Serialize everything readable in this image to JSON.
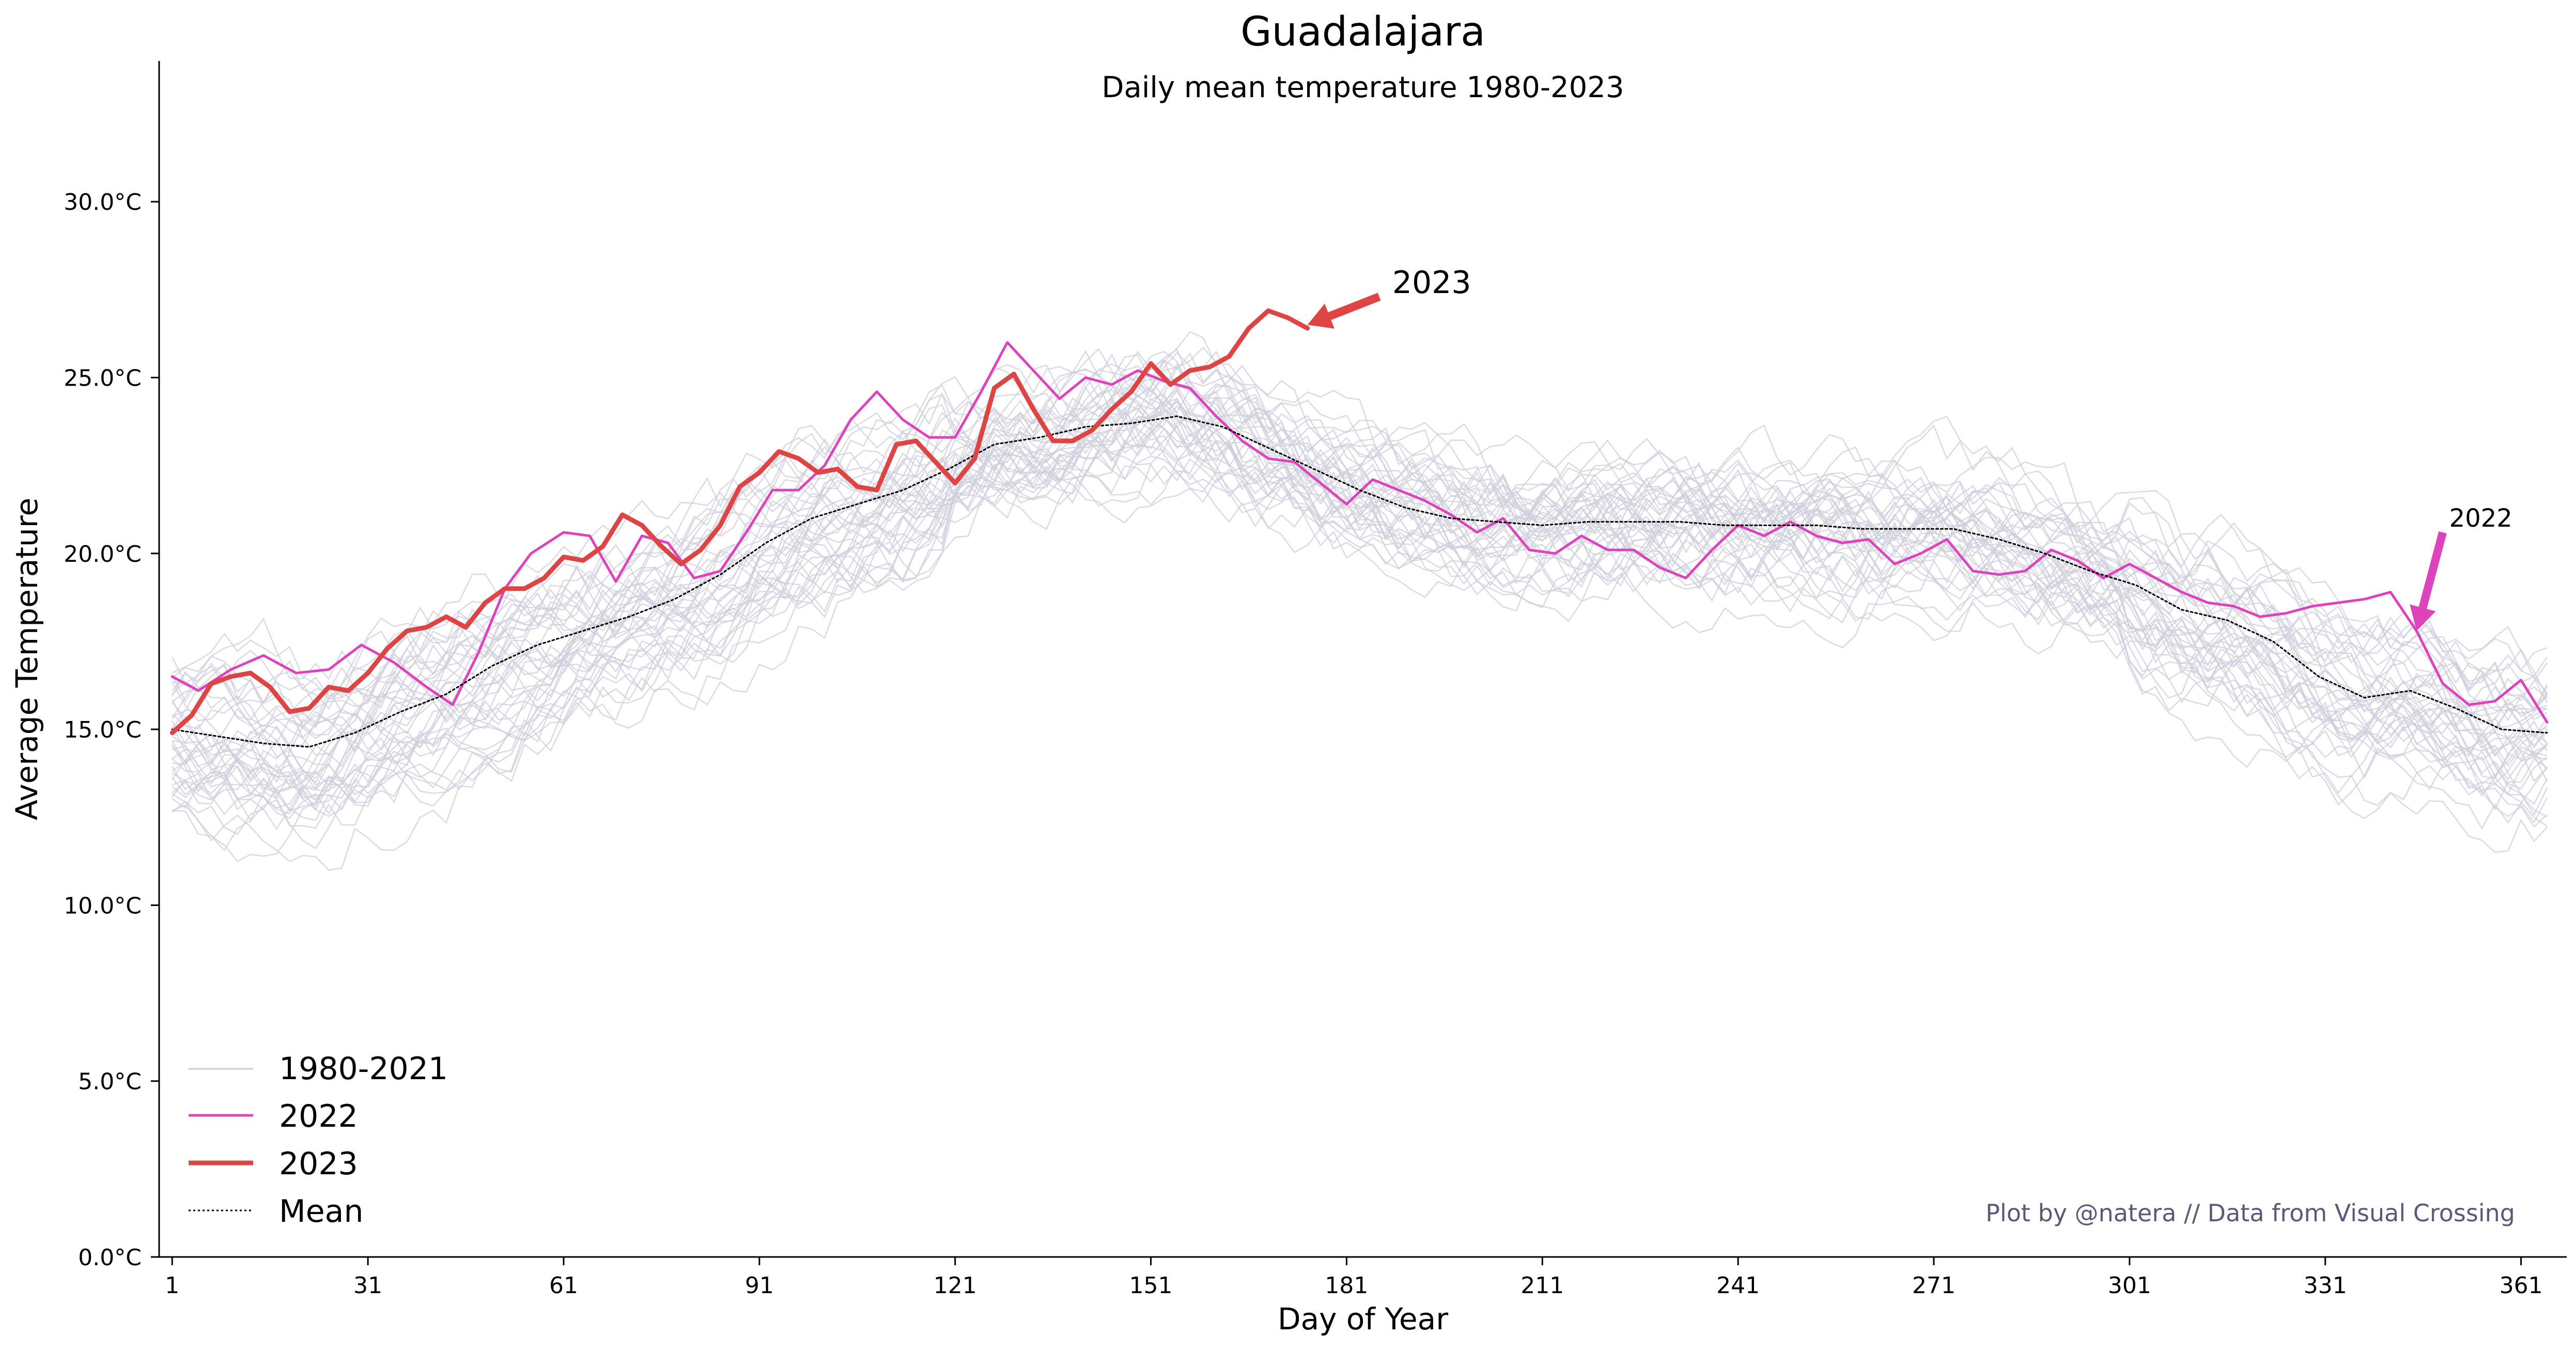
{
  "chart_data": {
    "type": "line",
    "title": "Guadalajara",
    "subtitle": "Daily mean temperature 1980-2023",
    "xlabel": "Day of Year",
    "ylabel": "Average Temperature",
    "xlim": [
      -1,
      368
    ],
    "ylim": [
      0,
      34
    ],
    "x_ticks": [
      1,
      31,
      61,
      91,
      121,
      151,
      181,
      211,
      241,
      271,
      301,
      331,
      361
    ],
    "y_ticks": [
      0,
      5,
      10,
      15,
      20,
      25,
      30
    ],
    "y_tick_format": "°C",
    "grid": false,
    "legend_position": "lower-left",
    "legend": [
      {
        "label": "1980-2021",
        "color": "#c9c9d8",
        "style": "thin"
      },
      {
        "label": "2022",
        "color": "#dd44bb",
        "style": "solid"
      },
      {
        "label": "2023",
        "color": "#dd4444",
        "style": "thick"
      },
      {
        "label": "Mean",
        "color": "#000000",
        "style": "dotted"
      }
    ],
    "credit": "Plot by @natera // Data from Visual Crossing",
    "annotations": [
      {
        "text": "2023",
        "color": "#dd4444",
        "text_x": 188,
        "text_y": 27.7,
        "arrow_from": [
          186,
          27.3
        ],
        "arrow_to": [
          175,
          26.5
        ]
      },
      {
        "text": "2022",
        "color": "#dd44bb",
        "text_x": 350,
        "text_y": 21.0,
        "arrow_from": [
          349,
          20.6
        ],
        "arrow_to": [
          345,
          17.8
        ]
      }
    ],
    "series": [
      {
        "name": "Mean",
        "color": "#000000",
        "x": [
          1,
          8,
          15,
          22,
          29,
          36,
          43,
          50,
          57,
          64,
          71,
          78,
          85,
          92,
          99,
          106,
          113,
          120,
          127,
          134,
          141,
          148,
          155,
          162,
          169,
          176,
          183,
          190,
          197,
          204,
          211,
          218,
          225,
          232,
          239,
          246,
          253,
          260,
          267,
          274,
          281,
          288,
          295,
          302,
          309,
          316,
          323,
          330,
          337,
          344,
          351,
          358,
          365
        ],
        "y": [
          15.0,
          14.8,
          14.6,
          14.5,
          14.9,
          15.5,
          16.0,
          16.8,
          17.4,
          17.8,
          18.2,
          18.7,
          19.4,
          20.3,
          21.0,
          21.4,
          21.8,
          22.4,
          23.1,
          23.3,
          23.6,
          23.7,
          23.9,
          23.6,
          23.0,
          22.4,
          21.8,
          21.3,
          21.0,
          20.9,
          20.8,
          20.9,
          20.9,
          20.9,
          20.8,
          20.8,
          20.8,
          20.7,
          20.7,
          20.7,
          20.4,
          20.0,
          19.5,
          19.1,
          18.4,
          18.1,
          17.5,
          16.5,
          15.9,
          16.1,
          15.6,
          15.0,
          14.9
        ]
      },
      {
        "name": "2022",
        "color": "#dd44bb",
        "x": [
          1,
          5,
          10,
          15,
          20,
          25,
          30,
          35,
          40,
          44,
          48,
          52,
          56,
          61,
          65,
          69,
          73,
          77,
          81,
          85,
          89,
          93,
          97,
          101,
          105,
          109,
          113,
          117,
          121,
          125,
          129,
          133,
          137,
          141,
          145,
          149,
          153,
          157,
          161,
          165,
          169,
          173,
          177,
          181,
          185,
          189,
          193,
          197,
          201,
          205,
          209,
          213,
          217,
          221,
          225,
          229,
          233,
          237,
          241,
          245,
          249,
          253,
          257,
          261,
          265,
          269,
          273,
          277,
          281,
          285,
          289,
          293,
          297,
          301,
          305,
          309,
          313,
          317,
          321,
          325,
          329,
          333,
          337,
          341,
          345,
          349,
          353,
          357,
          361,
          365
        ],
        "y": [
          16.5,
          16.1,
          16.7,
          17.1,
          16.6,
          16.7,
          17.4,
          16.9,
          16.2,
          15.7,
          17.2,
          19.0,
          20.0,
          20.6,
          20.5,
          19.2,
          20.5,
          20.3,
          19.3,
          19.5,
          20.6,
          21.8,
          21.8,
          22.5,
          23.8,
          24.6,
          23.8,
          23.3,
          23.3,
          24.6,
          26.0,
          25.2,
          24.4,
          25.0,
          24.8,
          25.2,
          24.9,
          24.7,
          23.9,
          23.2,
          22.7,
          22.6,
          22.0,
          21.4,
          22.1,
          21.8,
          21.5,
          21.1,
          20.6,
          21.0,
          20.1,
          20.0,
          20.5,
          20.1,
          20.1,
          19.6,
          19.3,
          20.1,
          20.8,
          20.5,
          20.9,
          20.5,
          20.3,
          20.4,
          19.7,
          20.0,
          20.4,
          19.5,
          19.4,
          19.5,
          20.1,
          19.8,
          19.3,
          19.7,
          19.3,
          18.9,
          18.6,
          18.5,
          18.2,
          18.3,
          18.5,
          18.6,
          18.7,
          18.9,
          17.8,
          16.3,
          15.7,
          15.8,
          16.4,
          15.2
        ]
      },
      {
        "name": "2023",
        "color": "#dd4444",
        "x": [
          1,
          4,
          7,
          10,
          13,
          16,
          19,
          22,
          25,
          28,
          31,
          34,
          37,
          40,
          43,
          46,
          49,
          52,
          55,
          58,
          61,
          64,
          67,
          70,
          73,
          76,
          79,
          82,
          85,
          88,
          91,
          94,
          97,
          100,
          103,
          106,
          109,
          112,
          115,
          118,
          121,
          124,
          127,
          130,
          133,
          136,
          139,
          142,
          145,
          148,
          151,
          154,
          157,
          160,
          163,
          166,
          169,
          172,
          175
        ],
        "y": [
          14.9,
          15.4,
          16.3,
          16.5,
          16.6,
          16.2,
          15.5,
          15.6,
          16.2,
          16.1,
          16.6,
          17.3,
          17.8,
          17.9,
          18.2,
          17.9,
          18.6,
          19.0,
          19.0,
          19.3,
          19.9,
          19.8,
          20.2,
          21.1,
          20.8,
          20.2,
          19.7,
          20.1,
          20.8,
          21.9,
          22.3,
          22.9,
          22.7,
          22.3,
          22.4,
          21.9,
          21.8,
          23.1,
          23.2,
          22.6,
          22.0,
          22.7,
          24.7,
          25.1,
          24.1,
          23.2,
          23.2,
          23.5,
          24.1,
          24.6,
          25.4,
          24.8,
          25.2,
          25.3,
          25.6,
          26.4,
          26.9,
          26.7,
          26.4
        ]
      }
    ]
  }
}
